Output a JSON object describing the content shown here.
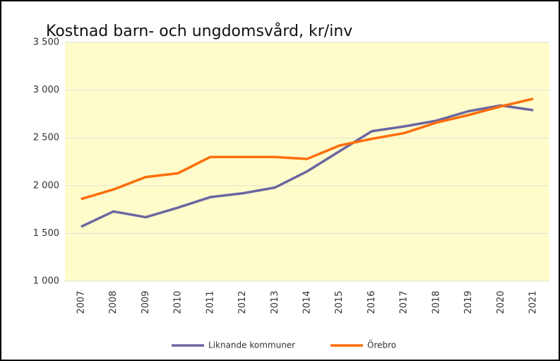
{
  "chart_data": {
    "type": "line",
    "title": "Kostnad barn- och ungdomsvård, kr/inv",
    "categories": [
      "2007",
      "2008",
      "2009",
      "2010",
      "2011",
      "2012",
      "2013",
      "2014",
      "2015",
      "2016",
      "2017",
      "2018",
      "2019",
      "2020",
      "2021"
    ],
    "series": [
      {
        "name": "Liknande kommuner",
        "color": "#6b66a0",
        "values": [
          1570,
          1730,
          1670,
          1770,
          1880,
          1920,
          1980,
          2150,
          2360,
          2570,
          2620,
          2680,
          2780,
          2840,
          2790
        ]
      },
      {
        "name": "Örebro",
        "color": "#ff6d0a",
        "values": [
          1860,
          1960,
          2090,
          2130,
          2300,
          2300,
          2300,
          2280,
          2420,
          2490,
          2550,
          2660,
          2740,
          2830,
          2910
        ]
      }
    ],
    "ylim": [
      1000,
      3500
    ],
    "yticks": [
      {
        "value": 1000,
        "label": "1 000"
      },
      {
        "value": 1500,
        "label": "1 500"
      },
      {
        "value": 2000,
        "label": "2 000"
      },
      {
        "value": 2500,
        "label": "2 500"
      },
      {
        "value": 3000,
        "label": "3 000"
      },
      {
        "value": 3500,
        "label": "3 500"
      }
    ],
    "grid": true,
    "legend": "bottom"
  }
}
